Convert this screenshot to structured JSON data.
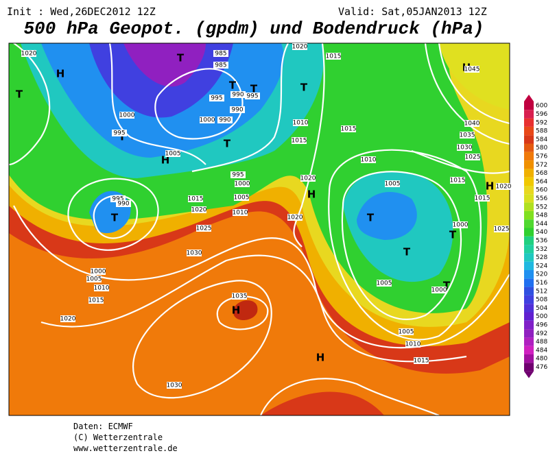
{
  "header": {
    "init": "Init : Wed,26DEC2012 12Z",
    "valid": "Valid: Sat,05JAN2013 12Z",
    "title": "500 hPa Geopot. (gpdm) und Bodendruck (hPa)"
  },
  "legend": {
    "labels": [
      "600",
      "596",
      "592",
      "588",
      "584",
      "580",
      "576",
      "572",
      "568",
      "564",
      "560",
      "556",
      "552",
      "548",
      "544",
      "540",
      "536",
      "532",
      "528",
      "524",
      "520",
      "516",
      "512",
      "508",
      "504",
      "500",
      "496",
      "492",
      "488",
      "484",
      "480",
      "476"
    ]
  },
  "map": {
    "labels": [
      "H",
      "T",
      "T",
      "T",
      "T",
      "T",
      "T",
      "H",
      "T",
      "T",
      "T",
      "T",
      "T",
      "T",
      "H",
      "H",
      "H",
      "H",
      "H",
      "1020",
      "985",
      "985",
      "995",
      "990",
      "995",
      "990",
      "1000",
      "1000",
      "990",
      "995",
      "1005",
      "995",
      "1000",
      "1005",
      "1010",
      "1015",
      "1020",
      "1025",
      "1030",
      "995",
      "990",
      "1020",
      "1015",
      "1010",
      "1015",
      "1015",
      "1020",
      "1020",
      "1010",
      "1005",
      "1000",
      "1005",
      "1000",
      "1005",
      "1010",
      "1015",
      "1040",
      "1035",
      "1030",
      "1025",
      "1015",
      "1015",
      "1020",
      "1000",
      "1005",
      "1010",
      "1015",
      "1020",
      "1035",
      "1030",
      "1045",
      "1025"
    ]
  },
  "footer": {
    "source": "Daten: ECMWF",
    "copyright": "(C) Wetterzentrale",
    "url": "www.wetterzentrale.de"
  }
}
